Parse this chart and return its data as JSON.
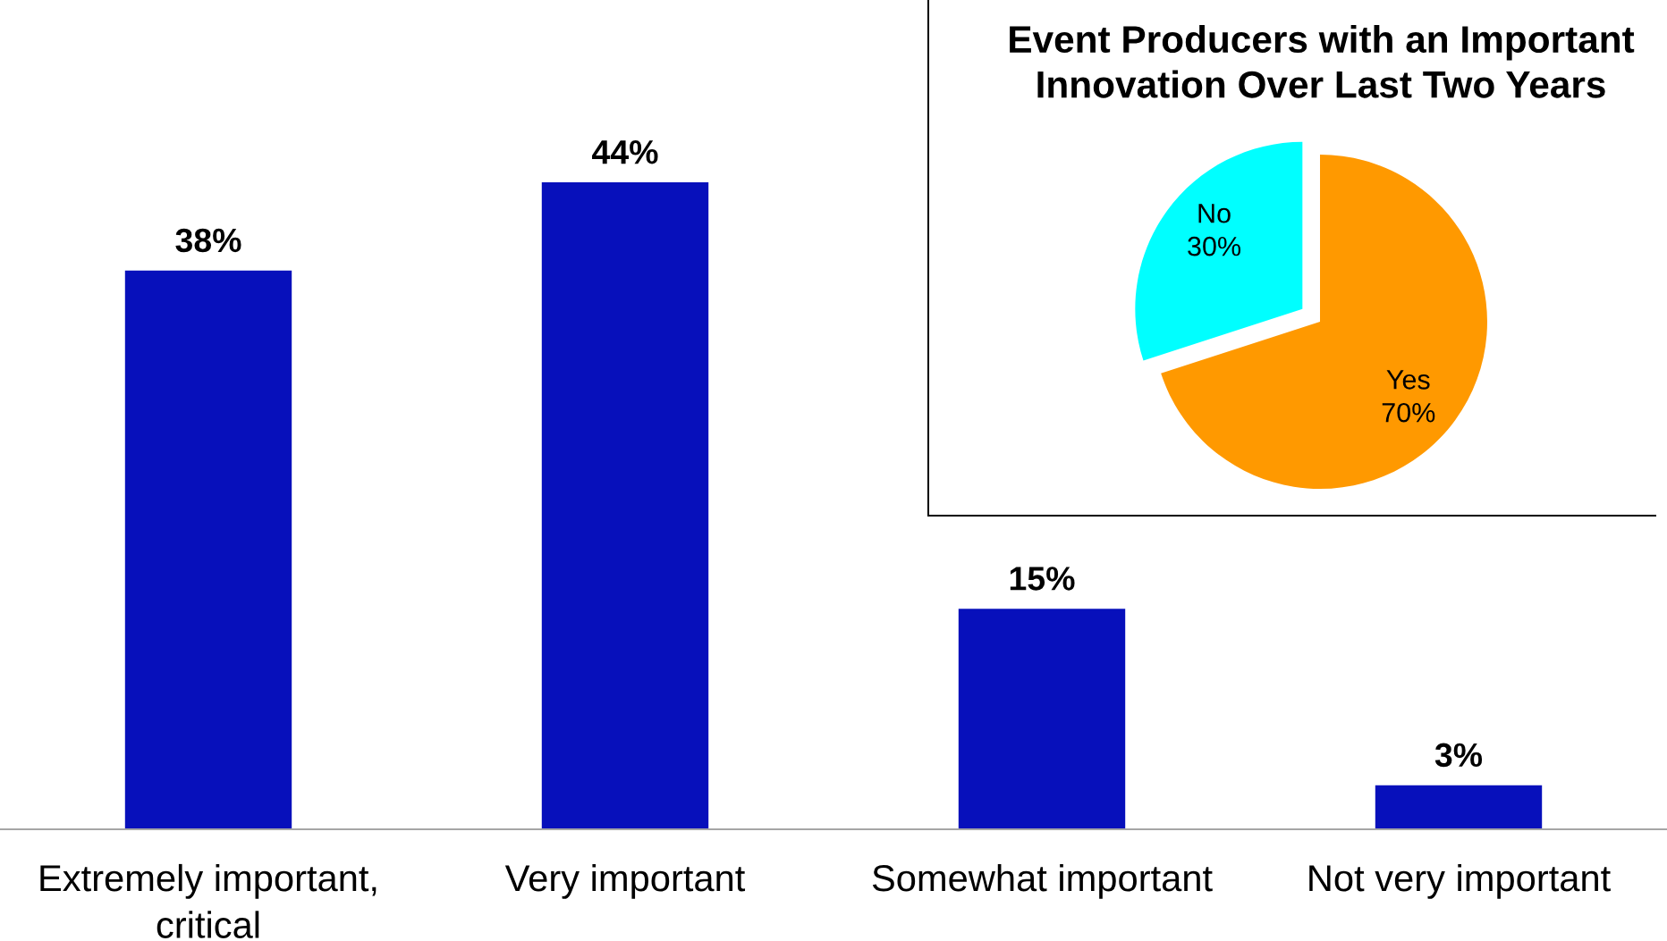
{
  "chart_data": [
    {
      "type": "bar",
      "categories": [
        "Extremely important,\ncritical",
        "Very important",
        "Somewhat important",
        "Not very important"
      ],
      "values": [
        38,
        44,
        15,
        3
      ],
      "value_labels": [
        "38%",
        "44%",
        "15%",
        "3%"
      ],
      "color": "#0710bb"
    },
    {
      "type": "pie",
      "title": "Event Producers with an Important\nInnovation Over Last Two Years",
      "categories": [
        "Yes",
        "No"
      ],
      "values": [
        70,
        30
      ],
      "value_labels": [
        "70%",
        "30%"
      ],
      "colors": [
        "#ff9900",
        "#00ffff"
      ]
    }
  ]
}
